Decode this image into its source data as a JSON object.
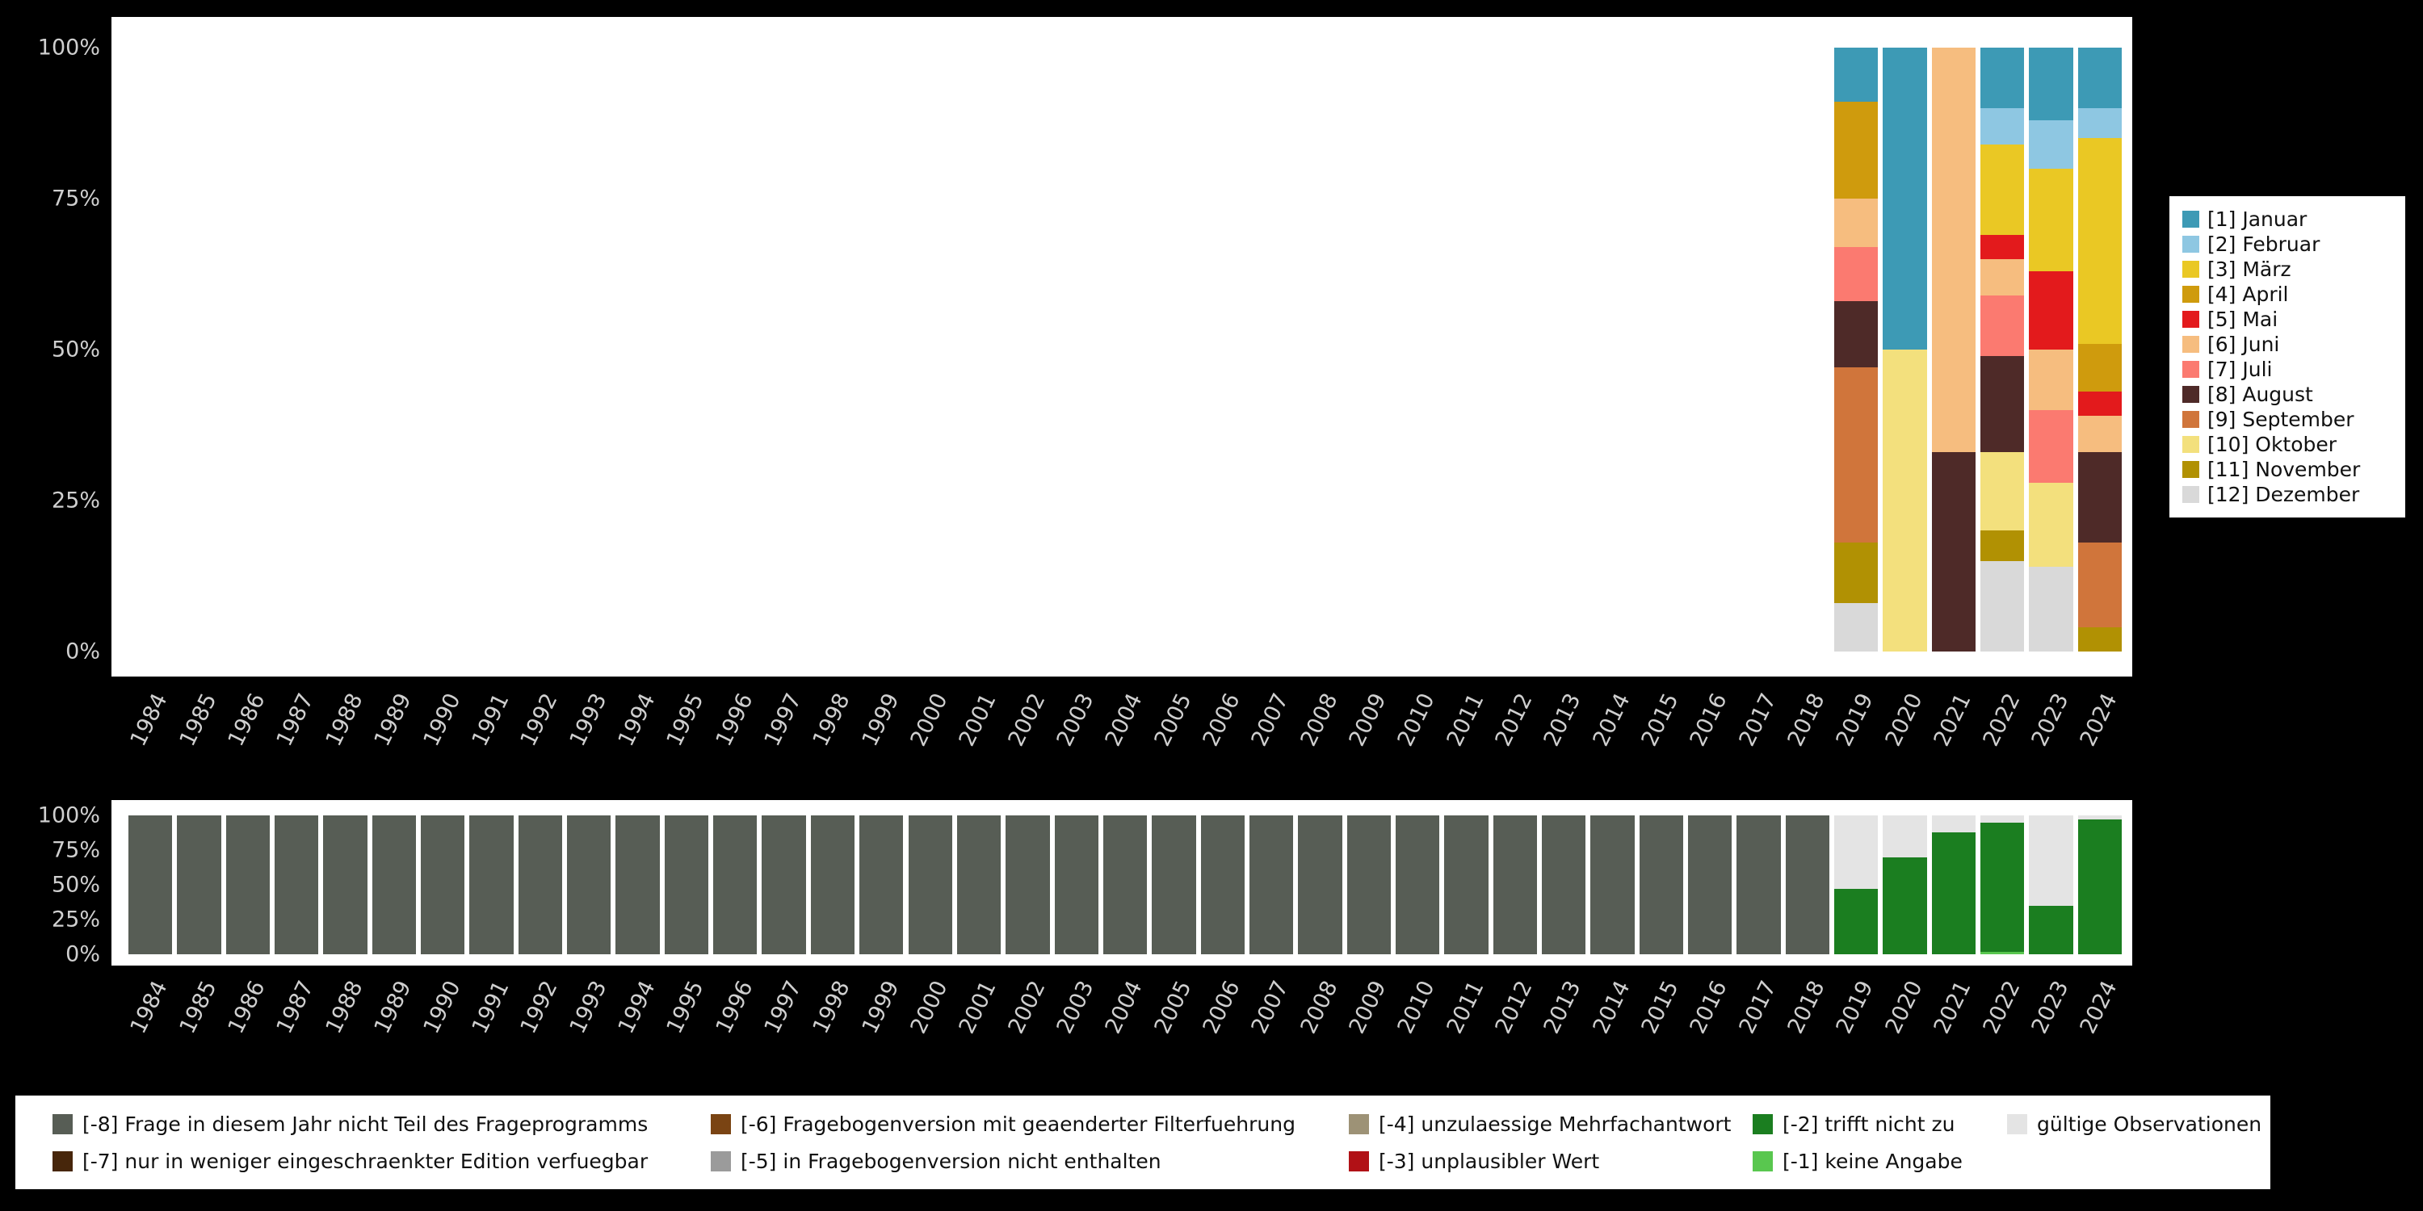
{
  "page": {
    "background": "#000000",
    "panel_background": "#ffffff",
    "axis_text_color": "#cfcfcf"
  },
  "chart_data": [
    {
      "id": "months-by-year",
      "type": "bar",
      "stacked": true,
      "title": "",
      "xlabel": "",
      "ylabel": "",
      "ylim": [
        0,
        100
      ],
      "unit": "%",
      "grid": false,
      "legend_position": "right",
      "y_ticks": [
        "100%",
        "75%",
        "50%",
        "25%",
        "0%"
      ],
      "categories": [
        "1984",
        "1985",
        "1986",
        "1987",
        "1988",
        "1989",
        "1990",
        "1991",
        "1992",
        "1993",
        "1994",
        "1995",
        "1996",
        "1997",
        "1998",
        "1999",
        "2000",
        "2001",
        "2002",
        "2003",
        "2004",
        "2005",
        "2006",
        "2007",
        "2008",
        "2009",
        "2010",
        "2011",
        "2012",
        "2013",
        "2014",
        "2015",
        "2016",
        "2017",
        "2018",
        "2019",
        "2020",
        "2021",
        "2022",
        "2023",
        "2024"
      ],
      "legend": [
        {
          "label": "[1] Januar",
          "color": "#3d9ab5"
        },
        {
          "label": "[2] Februar",
          "color": "#8ec7e2"
        },
        {
          "label": "[3] März",
          "color": "#eac824"
        },
        {
          "label": "[4] April",
          "color": "#cf9b0d"
        },
        {
          "label": "[5] Mai",
          "color": "#e31a1c"
        },
        {
          "label": "[6] Juni",
          "color": "#f6bd7f"
        },
        {
          "label": "[7] Juli",
          "color": "#fb7a70"
        },
        {
          "label": "[8] August",
          "color": "#4e2a28"
        },
        {
          "label": "[9] September",
          "color": "#d0753b"
        },
        {
          "label": "[10] Oktober",
          "color": "#f3e07d"
        },
        {
          "label": "[11] November",
          "color": "#b19103"
        },
        {
          "label": "[12] Dezember",
          "color": "#d9d9d9"
        }
      ],
      "series": [
        {
          "name": "[12] Dezember",
          "values": {
            "2019": 8,
            "2022": 15,
            "2023": 14
          }
        },
        {
          "name": "[11] November",
          "values": {
            "2019": 10,
            "2022": 5,
            "2024": 4
          }
        },
        {
          "name": "[10] Oktober",
          "values": {
            "2020": 50,
            "2022": 13,
            "2023": 14
          }
        },
        {
          "name": "[9] September",
          "values": {
            "2019": 29,
            "2024": 14
          }
        },
        {
          "name": "[8] August",
          "values": {
            "2019": 11,
            "2021": 33,
            "2022": 16,
            "2024": 15
          }
        },
        {
          "name": "[7] Juli",
          "values": {
            "2019": 9,
            "2022": 10,
            "2023": 12
          }
        },
        {
          "name": "[6] Juni",
          "values": {
            "2019": 8,
            "2021": 67,
            "2022": 6,
            "2023": 10,
            "2024": 6
          }
        },
        {
          "name": "[5] Mai",
          "values": {
            "2022": 4,
            "2023": 13,
            "2024": 4
          }
        },
        {
          "name": "[4] April",
          "values": {
            "2019": 16,
            "2024": 8
          }
        },
        {
          "name": "[3] März",
          "values": {
            "2022": 15,
            "2023": 17,
            "2024": 34
          }
        },
        {
          "name": "[2] Februar",
          "values": {
            "2022": 6,
            "2023": 8,
            "2024": 5
          }
        },
        {
          "name": "[1] Januar",
          "values": {
            "2019": 9,
            "2020": 50,
            "2022": 10,
            "2023": 12,
            "2024": 10
          }
        }
      ]
    },
    {
      "id": "missing-values-by-year",
      "type": "bar",
      "stacked": true,
      "title": "",
      "xlabel": "",
      "ylabel": "",
      "ylim": [
        0,
        100
      ],
      "unit": "%",
      "grid": false,
      "legend_position": "bottom",
      "y_ticks": [
        "100%",
        "75%",
        "50%",
        "25%",
        "0%"
      ],
      "categories": [
        "1984",
        "1985",
        "1986",
        "1987",
        "1988",
        "1989",
        "1990",
        "1991",
        "1992",
        "1993",
        "1994",
        "1995",
        "1996",
        "1997",
        "1998",
        "1999",
        "2000",
        "2001",
        "2002",
        "2003",
        "2004",
        "2005",
        "2006",
        "2007",
        "2008",
        "2009",
        "2010",
        "2011",
        "2012",
        "2013",
        "2014",
        "2015",
        "2016",
        "2017",
        "2018",
        "2019",
        "2020",
        "2021",
        "2022",
        "2023",
        "2024"
      ],
      "legend": [
        {
          "label": "[-8] Frage in diesem Jahr nicht Teil des Frageprogramms",
          "color": "#575d55"
        },
        {
          "label": "[-7] nur in weniger eingeschraenkter Edition verfuegbar",
          "color": "#47260b"
        },
        {
          "label": "[-6] Fragebogenversion mit geaenderter Filterfuehrung",
          "color": "#7a4413"
        },
        {
          "label": "[-5] in Fragebogenversion nicht enthalten",
          "color": "#9b9b9b"
        },
        {
          "label": "[-4] unzulaessige Mehrfachantwort",
          "color": "#9d9276"
        },
        {
          "label": "[-3] unplausibler Wert",
          "color": "#b11116"
        },
        {
          "label": "[-2] trifft nicht zu",
          "color": "#1b7e20"
        },
        {
          "label": "[-1] keine Angabe",
          "color": "#59c74f"
        },
        {
          "label": "gültige Observationen",
          "color": "#e4e4e4"
        }
      ],
      "series": [
        {
          "name": "[-1] keine Angabe",
          "values": {
            "2022": 2
          }
        },
        {
          "name": "[-2] trifft nicht zu",
          "values": {
            "2019": 47,
            "2020": 70,
            "2021": 88,
            "2022": 93,
            "2023": 35,
            "2024": 97
          }
        },
        {
          "name": "[-3] unplausibler Wert",
          "values": {}
        },
        {
          "name": "[-4] unzulaessige Mehrfachantwort",
          "values": {}
        },
        {
          "name": "[-5] in Fragebogenversion nicht enthalten",
          "values": {}
        },
        {
          "name": "[-6] Fragebogenversion mit geaenderter Filterfuehrung",
          "values": {}
        },
        {
          "name": "[-7] nur in weniger eingeschraenkter Edition verfuegbar",
          "values": {}
        },
        {
          "name": "[-8] Frage in diesem Jahr nicht Teil des Frageprogramms",
          "values": {
            "1984": 100,
            "1985": 100,
            "1986": 100,
            "1987": 100,
            "1988": 100,
            "1989": 100,
            "1990": 100,
            "1991": 100,
            "1992": 100,
            "1993": 100,
            "1994": 100,
            "1995": 100,
            "1996": 100,
            "1997": 100,
            "1998": 100,
            "1999": 100,
            "2000": 100,
            "2001": 100,
            "2002": 100,
            "2003": 100,
            "2004": 100,
            "2005": 100,
            "2006": 100,
            "2007": 100,
            "2008": 100,
            "2009": 100,
            "2010": 100,
            "2011": 100,
            "2012": 100,
            "2013": 100,
            "2014": 100,
            "2015": 100,
            "2016": 100,
            "2017": 100,
            "2018": 100
          }
        },
        {
          "name": "gültige Observationen",
          "values": {
            "2019": 53,
            "2020": 30,
            "2021": 12,
            "2022": 5,
            "2023": 65,
            "2024": 3
          }
        }
      ]
    }
  ]
}
